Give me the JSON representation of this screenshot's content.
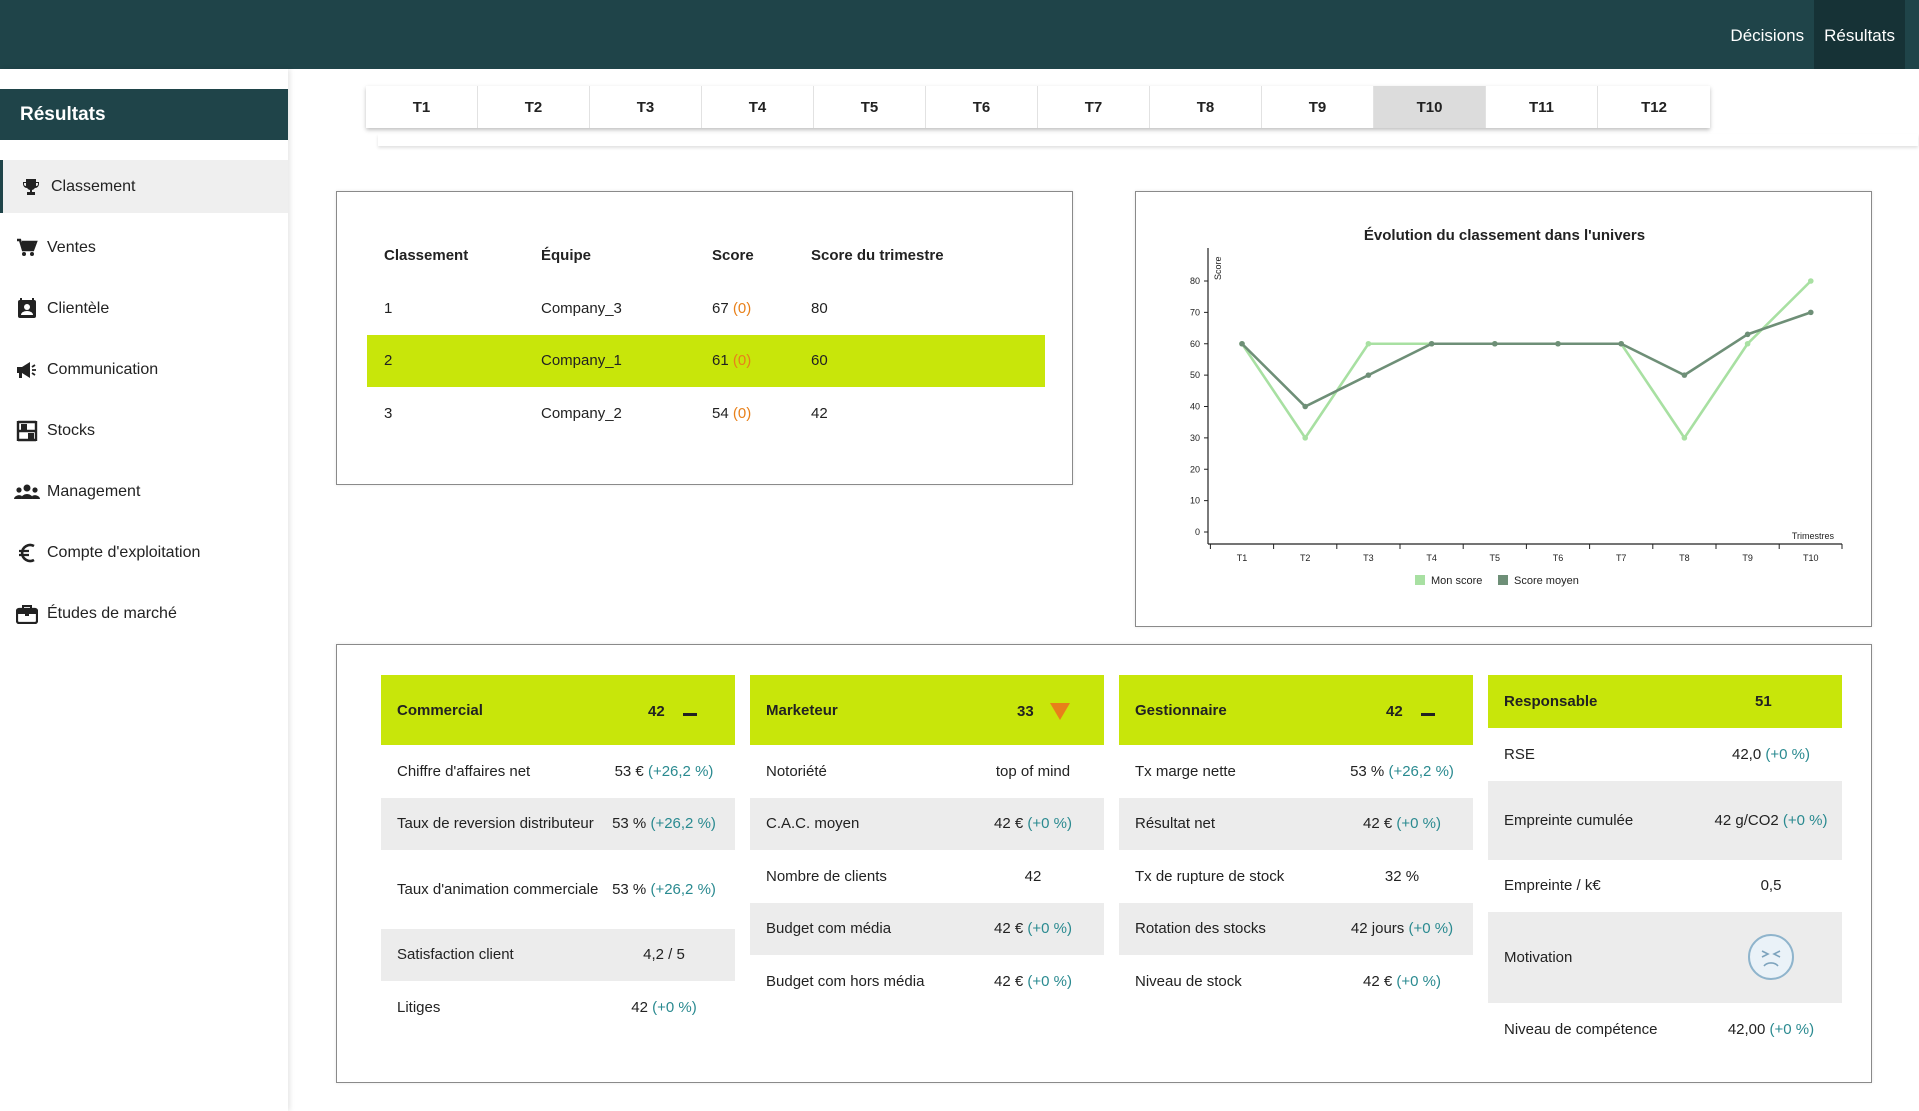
{
  "topnav": {
    "items": [
      {
        "label": "Décisions"
      },
      {
        "label": "Résultats"
      }
    ]
  },
  "sidebar": {
    "title": "Résultats",
    "items": [
      {
        "label": "Classement",
        "icon": "trophy-icon"
      },
      {
        "label": "Ventes",
        "icon": "cart-icon"
      },
      {
        "label": "Clientèle",
        "icon": "contact-card-icon"
      },
      {
        "label": "Communication",
        "icon": "megaphone-icon"
      },
      {
        "label": "Stocks",
        "icon": "shelves-icon"
      },
      {
        "label": "Management",
        "icon": "people-icon"
      },
      {
        "label": "Compte d'exploitation",
        "icon": "euro-icon"
      },
      {
        "label": "Études de marché",
        "icon": "briefcase-icon"
      }
    ]
  },
  "tabs": [
    "T1",
    "T2",
    "T3",
    "T4",
    "T5",
    "T6",
    "T7",
    "T8",
    "T9",
    "T10",
    "T11",
    "T12"
  ],
  "active_tab": "T10",
  "ranking": {
    "headers": [
      "Classement",
      "Équipe",
      "Score",
      "Score du trimestre"
    ],
    "rows": [
      {
        "rank": "1",
        "team": "Company_3",
        "score": "67",
        "delta": "(0)",
        "quarter": "80"
      },
      {
        "rank": "2",
        "team": "Company_1",
        "score": "61",
        "delta": "(0)",
        "quarter": "60"
      },
      {
        "rank": "3",
        "team": "Company_2",
        "score": "54",
        "delta": "(0)",
        "quarter": "42"
      }
    ]
  },
  "chart_data": {
    "type": "line",
    "title": "Évolution du classement dans l'univers",
    "xlabel": "Trimestres",
    "ylabel": "Score",
    "x": [
      "T1",
      "T2",
      "T3",
      "T4",
      "T5",
      "T6",
      "T7",
      "T8",
      "T9",
      "T10"
    ],
    "yticks": [
      0,
      10,
      20,
      30,
      40,
      50,
      60,
      70,
      80
    ],
    "ylim": [
      0,
      88
    ],
    "series": [
      {
        "name": "Mon score",
        "color": "#a8e0a2",
        "values": [
          60,
          30,
          60,
          60,
          60,
          60,
          60,
          30,
          60,
          80
        ]
      },
      {
        "name": "Score moyen",
        "color": "#6e8f77",
        "values": [
          60,
          40,
          50,
          60,
          60,
          60,
          60,
          50,
          63,
          70
        ]
      }
    ],
    "legend": "bottom"
  },
  "cards": [
    {
      "title": "Commercial",
      "score": "42",
      "indicator": "dash",
      "rows": [
        {
          "label": "Chiffre d'affaires net",
          "value": "53 €",
          "change": "(+26,2 %)"
        },
        {
          "label": "Taux de reversion distributeur",
          "value": "53 %",
          "change": "(+26,2 %)"
        },
        {
          "label": "Taux d'animation commerciale",
          "value": "53 %",
          "change": "(+26,2 %)"
        },
        {
          "label": "Satisfaction client",
          "value": "4,2 / 5",
          "change": ""
        },
        {
          "label": "Litiges",
          "value": "42",
          "change": "(+0 %)"
        }
      ]
    },
    {
      "title": "Marketeur",
      "score": "33",
      "indicator": "down",
      "rows": [
        {
          "label": "Notoriété",
          "value": "top of mind",
          "change": ""
        },
        {
          "label": "C.A.C. moyen",
          "value": "42 €",
          "change": "(+0 %)"
        },
        {
          "label": "Nombre de clients",
          "value": "42",
          "change": ""
        },
        {
          "label": "Budget com média",
          "value": "42 €",
          "change": "(+0 %)"
        },
        {
          "label": "Budget com hors média",
          "value": "42 €",
          "change": "(+0 %)"
        }
      ]
    },
    {
      "title": "Gestionnaire",
      "score": "42",
      "indicator": "dash",
      "rows": [
        {
          "label": "Tx marge nette",
          "value": "53 %",
          "change": "(+26,2 %)"
        },
        {
          "label": "Résultat net",
          "value": "42 €",
          "change": "(+0 %)"
        },
        {
          "label": "Tx de rupture de stock",
          "value": "32 %",
          "change": ""
        },
        {
          "label": "Rotation des stocks",
          "value": "42 jours",
          "change": "(+0 %)"
        },
        {
          "label": "Niveau de stock",
          "value": "42 €",
          "change": "(+0 %)"
        }
      ]
    },
    {
      "title": "Responsable",
      "score": "51",
      "indicator": "none",
      "rows": [
        {
          "label": "RSE",
          "value": "42,0",
          "change": "(+0 %)"
        },
        {
          "label": "Empreinte cumulée",
          "value": "42 g/CO2",
          "change": "(+0 %)"
        },
        {
          "label": "Empreinte / k€",
          "value": "0,5",
          "change": ""
        },
        {
          "label": "Motivation",
          "value": "",
          "change": "",
          "icon": "sad-face-icon"
        },
        {
          "label": "Niveau de compétence",
          "value": "42,00",
          "change": "(+0 %)"
        }
      ]
    }
  ]
}
